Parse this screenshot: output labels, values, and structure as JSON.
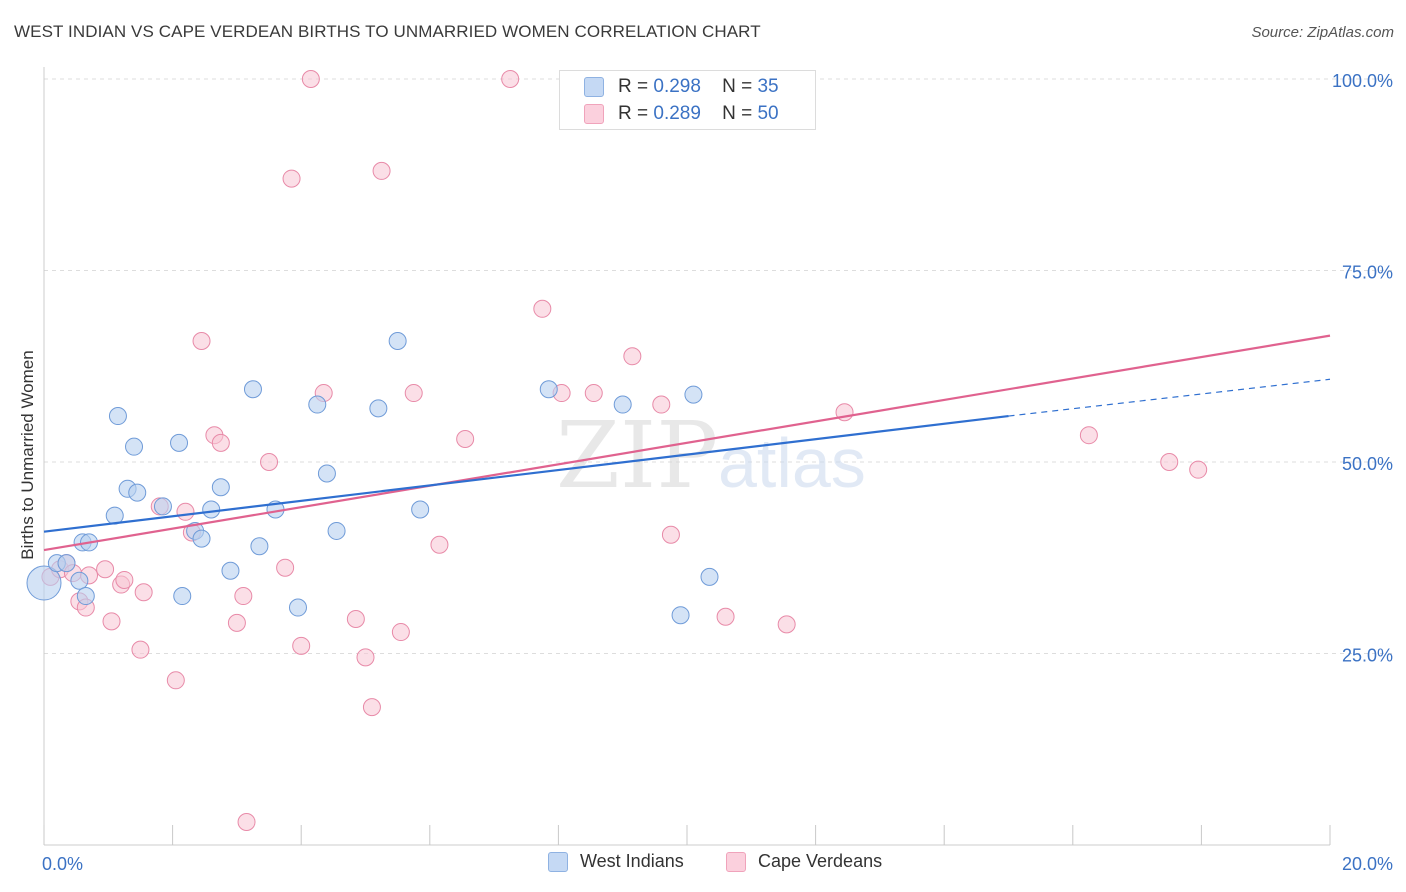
{
  "header": {
    "title": "WEST INDIAN VS CAPE VERDEAN BIRTHS TO UNMARRIED WOMEN CORRELATION CHART",
    "source": "Source: ZipAtlas.com"
  },
  "watermark": {
    "zip": "ZIP",
    "atlas": "atlas"
  },
  "legend": {
    "rows": [
      {
        "r_label": "R =",
        "r_value": "0.298",
        "n_label": "N =",
        "n_value": "35"
      },
      {
        "r_label": "R =",
        "r_value": "0.289",
        "n_label": "N =",
        "n_value": "50"
      }
    ]
  },
  "colors": {
    "blue_fill": "#b8d0f0",
    "blue_stroke": "#6f9bd8",
    "blue_line": "#2f6fd0",
    "pink_fill": "#f8c4d4",
    "pink_stroke": "#e88aa8",
    "pink_line": "#e0628f",
    "axis_text": "#3b72c4",
    "grid": "#dddddd"
  },
  "chart_data": {
    "type": "scatter",
    "title": "WEST INDIAN VS CAPE VERDEAN BIRTHS TO UNMARRIED WOMEN CORRELATION CHART",
    "xlabel": "",
    "ylabel": "Births to Unmarried Women",
    "xlim": [
      0,
      20
    ],
    "ylim": [
      0,
      100
    ],
    "x_tick_labels": [
      "0.0%",
      "20.0%"
    ],
    "y_tick_labels": [
      "25.0%",
      "50.0%",
      "75.0%",
      "100.0%"
    ],
    "y_ticks": [
      25,
      50,
      75,
      100
    ],
    "legend_position": "top-center",
    "series": [
      {
        "name": "West Indians",
        "points": [
          [
            0.0,
            34.2
          ],
          [
            0.2,
            36.8
          ],
          [
            0.35,
            36.8
          ],
          [
            0.55,
            34.5
          ],
          [
            0.6,
            39.5
          ],
          [
            0.65,
            32.5
          ],
          [
            0.7,
            39.5
          ],
          [
            1.1,
            43.0
          ],
          [
            1.15,
            56.0
          ],
          [
            1.3,
            46.5
          ],
          [
            1.4,
            52.0
          ],
          [
            1.45,
            46.0
          ],
          [
            1.85,
            44.2
          ],
          [
            2.1,
            52.5
          ],
          [
            2.15,
            32.5
          ],
          [
            2.35,
            41.0
          ],
          [
            2.45,
            40.0
          ],
          [
            2.6,
            43.8
          ],
          [
            2.75,
            46.7
          ],
          [
            2.9,
            35.8
          ],
          [
            3.25,
            59.5
          ],
          [
            3.35,
            39.0
          ],
          [
            3.6,
            43.8
          ],
          [
            3.95,
            31.0
          ],
          [
            4.25,
            57.5
          ],
          [
            4.4,
            48.5
          ],
          [
            4.55,
            41.0
          ],
          [
            5.2,
            57.0
          ],
          [
            5.5,
            65.8
          ],
          [
            5.85,
            43.8
          ],
          [
            7.85,
            59.5
          ],
          [
            9.0,
            57.5
          ],
          [
            9.9,
            30.0
          ],
          [
            10.1,
            58.8
          ],
          [
            10.35,
            35.0
          ]
        ],
        "trend": {
          "x": [
            0.0,
            15.0
          ],
          "y": [
            40.9,
            56.0
          ],
          "dashed_to": [
            20.0,
            60.8
          ]
        }
      },
      {
        "name": "Cape Verdeans",
        "points": [
          [
            0.1,
            35.0
          ],
          [
            0.25,
            36.0
          ],
          [
            0.35,
            36.8
          ],
          [
            0.45,
            35.5
          ],
          [
            0.55,
            31.8
          ],
          [
            0.65,
            31.0
          ],
          [
            0.7,
            35.2
          ],
          [
            0.95,
            36.0
          ],
          [
            1.05,
            29.2
          ],
          [
            1.2,
            34.0
          ],
          [
            1.25,
            34.6
          ],
          [
            1.5,
            25.5
          ],
          [
            1.55,
            33.0
          ],
          [
            1.8,
            44.2
          ],
          [
            2.05,
            21.5
          ],
          [
            2.2,
            43.5
          ],
          [
            2.3,
            40.8
          ],
          [
            2.45,
            65.8
          ],
          [
            2.65,
            53.5
          ],
          [
            2.75,
            52.5
          ],
          [
            3.0,
            29.0
          ],
          [
            3.1,
            32.5
          ],
          [
            3.15,
            3.0
          ],
          [
            3.5,
            50.0
          ],
          [
            3.75,
            36.2
          ],
          [
            3.85,
            87.0
          ],
          [
            4.0,
            26.0
          ],
          [
            4.15,
            100.0
          ],
          [
            4.35,
            59.0
          ],
          [
            4.85,
            29.5
          ],
          [
            5.0,
            24.5
          ],
          [
            5.1,
            18.0
          ],
          [
            5.25,
            88.0
          ],
          [
            5.55,
            27.8
          ],
          [
            5.75,
            59.0
          ],
          [
            6.15,
            39.2
          ],
          [
            6.55,
            53.0
          ],
          [
            7.25,
            100.0
          ],
          [
            7.75,
            70.0
          ],
          [
            8.05,
            59.0
          ],
          [
            8.55,
            59.0
          ],
          [
            9.15,
            63.8
          ],
          [
            9.6,
            57.5
          ],
          [
            9.75,
            40.5
          ],
          [
            10.6,
            29.8
          ],
          [
            11.55,
            28.8
          ],
          [
            12.45,
            56.5
          ],
          [
            16.25,
            53.5
          ],
          [
            17.5,
            50.0
          ],
          [
            17.95,
            49.0
          ]
        ],
        "trend": {
          "x": [
            0.0,
            20.0
          ],
          "y": [
            38.5,
            66.5
          ]
        }
      }
    ]
  }
}
